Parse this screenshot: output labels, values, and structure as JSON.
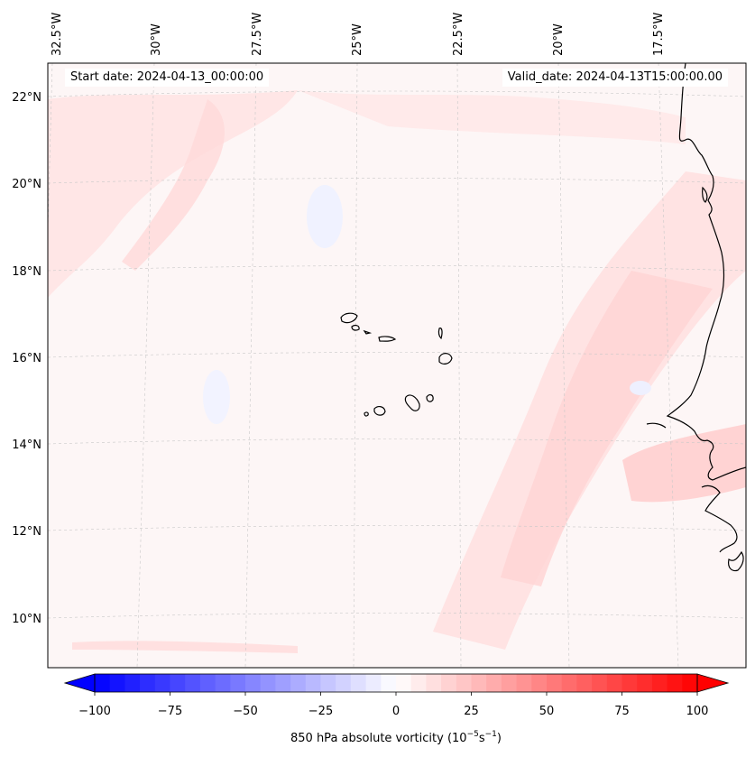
{
  "map": {
    "start_date_label": "Start date: 2024-04-13_00:00:00",
    "valid_date_label": "Valid_date: 2024-04-13T15:00:00.00",
    "lon_labels": [
      "32.5°W",
      "30°W",
      "27.5°W",
      "25°W",
      "22.5°W",
      "20°W",
      "17.5°W"
    ],
    "lat_labels": [
      "22°N",
      "20°N",
      "18°N",
      "16°N",
      "14°N",
      "12°N",
      "10°N"
    ],
    "field_colors": {
      "background": "#fdf6f6",
      "positive": "#ffd7d7",
      "negative": "#eef0ff",
      "coastline": "#000000",
      "grid": "#c8c8c8"
    },
    "features": [
      "Cape Verde islands",
      "West African coastline"
    ]
  },
  "colorbar": {
    "tick_labels": [
      "−100",
      "−75",
      "−50",
      "−25",
      "0",
      "25",
      "50",
      "75",
      "100"
    ],
    "label": "850 hPa absolute vorticity (10",
    "label_exp1": "−5",
    "label_mid": "s",
    "label_exp2": "−1",
    "label_end": ")",
    "min": -100,
    "max": 100,
    "colormap": "bwr",
    "extend": "both"
  }
}
